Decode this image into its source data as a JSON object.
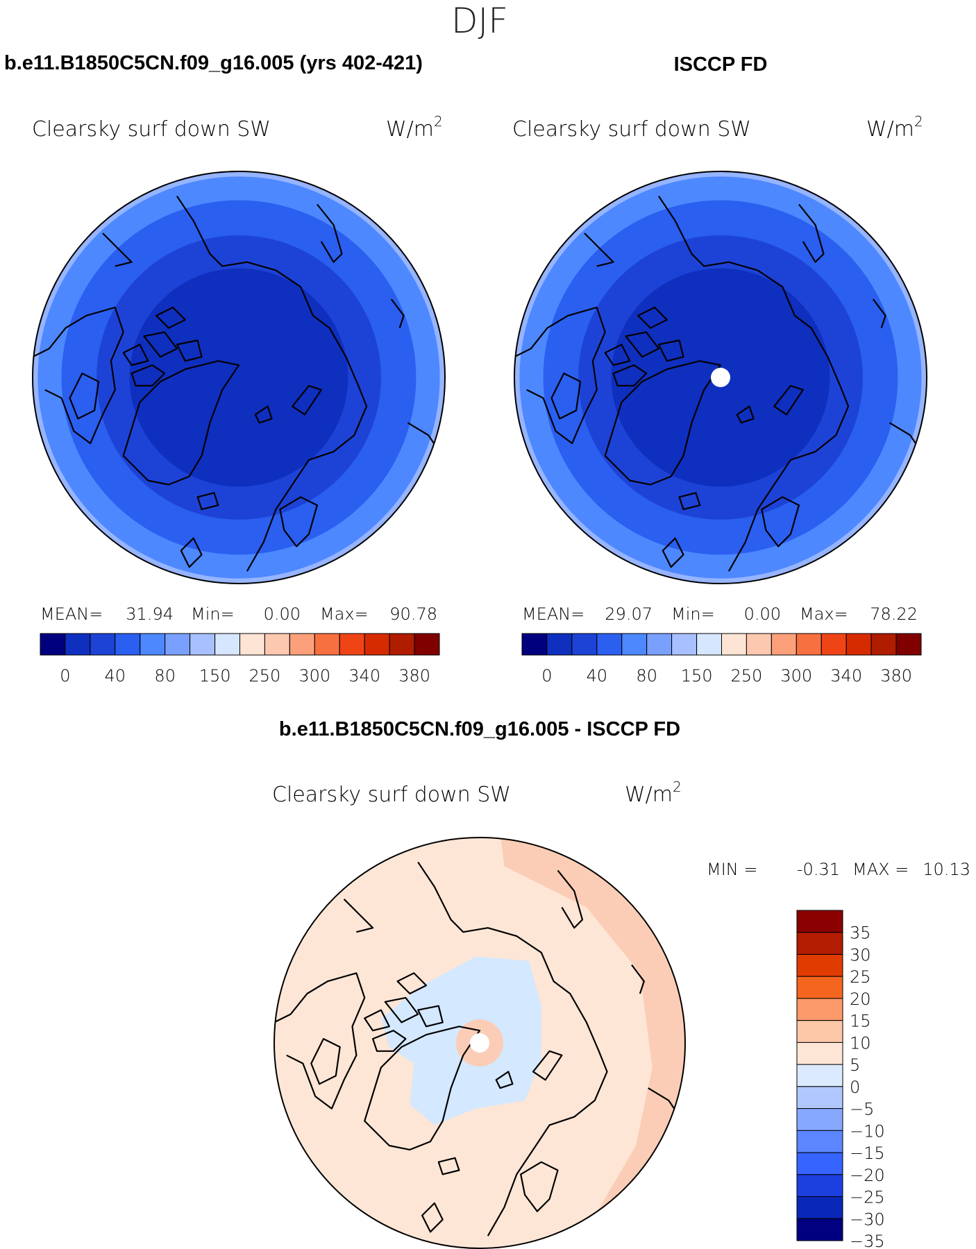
{
  "season": "DJF",
  "panels": [
    {
      "title": "b.e11.B1850C5CN.f09_g16.005 (yrs 402-421)",
      "variable": "Clearsky surf down SW",
      "units_base": "W/m",
      "units_exp": "2",
      "stats": {
        "mean_label": "MEAN=",
        "mean": "31.94",
        "min_label": "Min=",
        "min": "0.00",
        "max_label": "Max=",
        "max": "90.78"
      },
      "rings": [
        {
          "r": 1.0,
          "color": "#96b4ff"
        },
        {
          "r": 0.975,
          "color": "#4d88ff"
        },
        {
          "r": 0.86,
          "color": "#2a5ff0"
        },
        {
          "r": 0.69,
          "color": "#1d43d6"
        },
        {
          "r": 0.53,
          "color": "#0f2fbf"
        }
      ],
      "pole_hole": false
    },
    {
      "title": "ISCCP FD",
      "variable": "Clearsky surf down SW",
      "units_base": "W/m",
      "units_exp": "2",
      "stats": {
        "mean_label": "MEAN=",
        "mean": "29.07",
        "min_label": "Min=",
        "min": "0.00",
        "max_label": "Max=",
        "max": "78.22"
      },
      "rings": [
        {
          "r": 1.0,
          "color": "#96b4ff"
        },
        {
          "r": 0.975,
          "color": "#4d88ff"
        },
        {
          "r": 0.86,
          "color": "#2a5ff0"
        },
        {
          "r": 0.69,
          "color": "#1d43d6"
        },
        {
          "r": 0.53,
          "color": "#0f2fbf"
        }
      ],
      "pole_hole": true
    }
  ],
  "abs_colorbar": {
    "colors": [
      "#00007f",
      "#0f2fbf",
      "#1d43d6",
      "#2a5ff0",
      "#4d88ff",
      "#7aa0ff",
      "#a8c0ff",
      "#d6e6ff",
      "#fde4d4",
      "#fcc8b0",
      "#fba07a",
      "#f7703f",
      "#ef4516",
      "#d62b00",
      "#b01c00",
      "#800000"
    ],
    "labels": [
      "0",
      "40",
      "80",
      "150",
      "250",
      "300",
      "340",
      "380"
    ]
  },
  "diff_panel": {
    "title": "b.e11.B1850C5CN.f09_g16.005 - ISCCP FD",
    "variable": "Clearsky surf down SW",
    "units_base": "W/m",
    "units_exp": "2",
    "min_label": "MIN =",
    "min": "-0.31",
    "max_label": "MAX =",
    "max": "10.13"
  },
  "diff_colorbar": {
    "colors": [
      "#8b0000",
      "#b21c00",
      "#e03b00",
      "#f4661f",
      "#fc9a6c",
      "#fdc8a8",
      "#fde6d6",
      "#dbeaff",
      "#b0c8ff",
      "#86a8ff",
      "#5b86ff",
      "#3564ff",
      "#1c40e0",
      "#0a28b8",
      "#000080"
    ],
    "labels": [
      "35",
      "30",
      "25",
      "20",
      "15",
      "10",
      "5",
      "0",
      "-5",
      "-10",
      "-15",
      "-20",
      "-25",
      "-30",
      "-35"
    ]
  },
  "colors": {
    "diff_background": "#fde6d6",
    "diff_positive_band": "#fccdb6",
    "diff_negative": "#d4e8ff",
    "coastline": "#000000"
  }
}
